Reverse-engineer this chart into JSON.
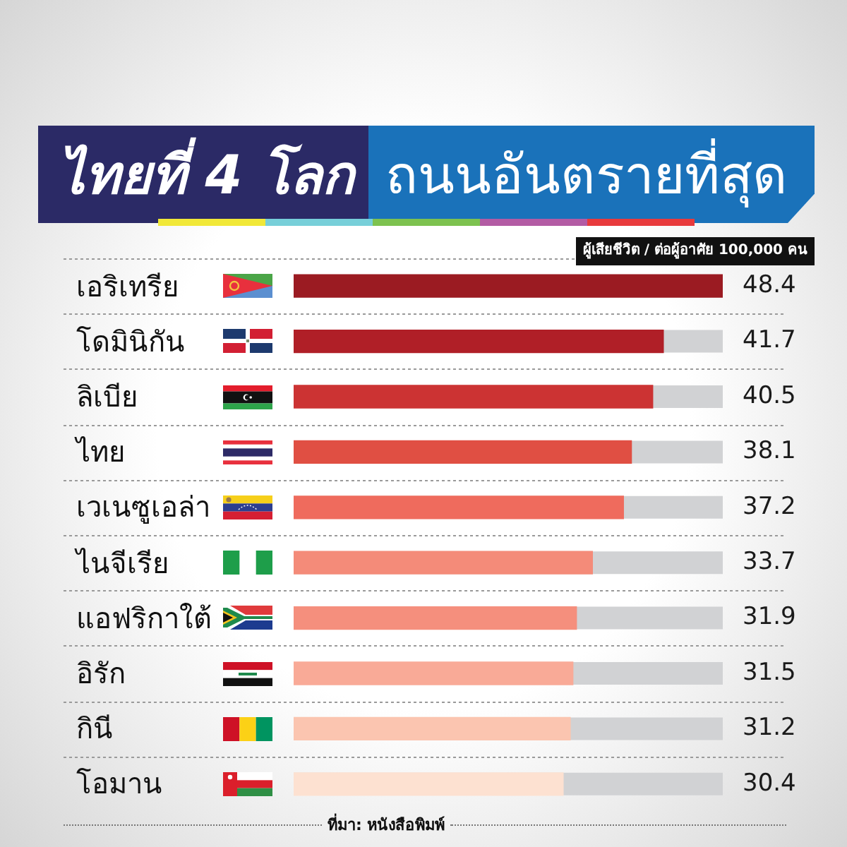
{
  "chart_data": {
    "type": "bar",
    "orientation": "horizontal",
    "title": "ไทยที่ 4 โลก ถนนอันตรายที่สุด",
    "subtitle": "ผู้เสียชีวิต / ต่อผู้อาศัย 100,000 คน",
    "categories": [
      "เอริเทรีย",
      "โดมินิกัน",
      "ลิเบีย",
      "ไทย",
      "เวเนซูเอล่า",
      "ไนจีเรีย",
      "แอฟริกาใต้",
      "อิรัก",
      "กินี",
      "โอมาน"
    ],
    "values": [
      48.4,
      41.7,
      40.5,
      38.1,
      37.2,
      33.7,
      31.9,
      31.5,
      31.2,
      30.4
    ],
    "colors": [
      "#9b1b22",
      "#b01f27",
      "#cc3333",
      "#e04f43",
      "#ef6b5d",
      "#f48b79",
      "#f58f7d",
      "#f9aa97",
      "#fbc5b0",
      "#fde1d1"
    ],
    "data_labels": true,
    "grid": "y",
    "tick_labels": "y",
    "annotations": [
      "ที่มา: หนังสือพิมพ์"
    ]
  }
}
